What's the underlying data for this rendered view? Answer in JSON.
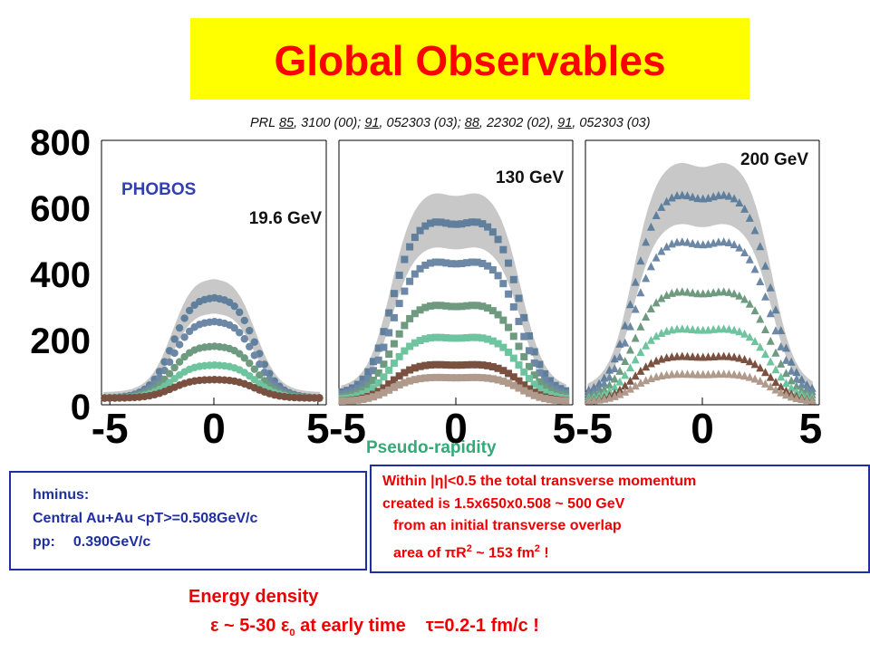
{
  "title": "Global Observables",
  "reference": {
    "parts": [
      {
        "t": "PRL ",
        "u": false
      },
      {
        "t": "85",
        "u": true
      },
      {
        "t": ", 3100 (00); ",
        "u": false
      },
      {
        "t": "91",
        "u": true
      },
      {
        "t": ", 052303 (03); ",
        "u": false
      },
      {
        "t": "88",
        "u": true
      },
      {
        "t": ", 22302 (02), ",
        "u": false
      },
      {
        "t": "91",
        "u": true
      },
      {
        "t": ", 052303 (03)",
        "u": false
      }
    ]
  },
  "experiment_label": "PHOBOS",
  "xlabel": "Pseudo-rapidity",
  "colors": {
    "title_bg": "#ffff00",
    "title_text": "#ff0000",
    "band": "#c8c8c8",
    "series": [
      "#5f7f9c",
      "#6c88a6",
      "#6e9a80",
      "#6fc4a0",
      "#7a5040",
      "#b09a8c"
    ],
    "phobos": "#3040b0",
    "pseudo": "#33aa77",
    "box_border": "#1f2fa0",
    "red_text": "#ee0000"
  },
  "chart_data": [
    {
      "type": "scatter",
      "energy_label": "19.6 GeV",
      "marker": "circle",
      "xlim": [
        -5.4,
        5.4
      ],
      "ylim": [
        0,
        800
      ],
      "y_ticks": [
        "0",
        "200",
        "400",
        "600",
        "800"
      ],
      "x_ticks": [
        "-5",
        "0",
        "5"
      ],
      "grid": false,
      "series": [
        {
          "plateau": 345,
          "edge": 20,
          "halfwidth": 2.0
        },
        {
          "plateau": 268,
          "edge": 20,
          "halfwidth": 2.0
        },
        {
          "plateau": 188,
          "edge": 20,
          "halfwidth": 2.0
        },
        {
          "plateau": 127,
          "edge": 20,
          "halfwidth": 2.0
        },
        {
          "plateau": 80,
          "edge": 20,
          "halfwidth": 2.0
        }
      ]
    },
    {
      "type": "scatter",
      "energy_label": "130 GeV",
      "marker": "square",
      "xlim": [
        -5.4,
        5.4
      ],
      "ylim": [
        0,
        800
      ],
      "x_ticks": [
        "-5",
        "0",
        "5"
      ],
      "grid": false,
      "series": [
        {
          "plateau": 570,
          "edge": 30,
          "halfwidth": 3.0
        },
        {
          "plateau": 445,
          "edge": 25,
          "halfwidth": 3.0
        },
        {
          "plateau": 310,
          "edge": 20,
          "halfwidth": 3.0
        },
        {
          "plateau": 210,
          "edge": 15,
          "halfwidth": 3.0
        },
        {
          "plateau": 125,
          "edge": 10,
          "halfwidth": 3.0
        },
        {
          "plateau": 85,
          "edge": 10,
          "halfwidth": 3.0
        }
      ]
    },
    {
      "type": "scatter",
      "energy_label": "200 GeV",
      "marker": "triangle",
      "xlim": [
        -5.4,
        5.4
      ],
      "ylim": [
        0,
        800
      ],
      "x_ticks": [
        "-5",
        "0",
        "5"
      ],
      "grid": false,
      "series": [
        {
          "plateau": 650,
          "edge": 30,
          "halfwidth": 3.2
        },
        {
          "plateau": 505,
          "edge": 25,
          "halfwidth": 3.2
        },
        {
          "plateau": 350,
          "edge": 20,
          "halfwidth": 3.2
        },
        {
          "plateau": 235,
          "edge": 15,
          "halfwidth": 3.2
        },
        {
          "plateau": 150,
          "edge": 10,
          "halfwidth": 3.2
        },
        {
          "plateau": 95,
          "edge": 10,
          "halfwidth": 3.2
        }
      ]
    }
  ],
  "hminus_box": {
    "line1": "hminus:",
    "line2": "Central Au+Au <pT>=0.508GeV/c",
    "line3_label": "pp:",
    "line3_value": "0.390GeV/c"
  },
  "transverse_box": {
    "line1_pre": "Within |",
    "line1_eta": "η",
    "line1_post": "|<0.5 the total transverse momentum",
    "line2": "created is 1.5x650x0.508 ~ 500 GeV",
    "line3": "from an initial transverse overlap",
    "line4_pre": "area of ",
    "line4_pi": "π",
    "line4_R": "R",
    "line4_exp": "2",
    "line4_mid": " ~ 153 fm",
    "line4_exp2": "2",
    "line4_post": " !"
  },
  "energy_density": {
    "title": "Energy density",
    "eps": "ε",
    "mid1": " ~ 5-30 ",
    "eps0": "ε",
    "sub0": "0",
    "mid2": " at early time",
    "tau": "τ",
    "end": "=0.2-1 fm/c !"
  }
}
